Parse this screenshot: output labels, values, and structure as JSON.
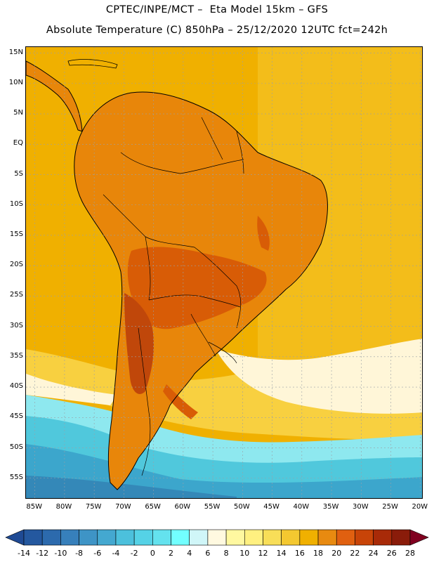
{
  "header": {
    "title_line1": "CPTEC/INPE/MCT –  Eta Model 15km – GFS",
    "title_line2": "Absolute Temperature (C) 850hPa – 25/12/2020 12UTC fct=242h"
  },
  "map": {
    "lat_labels": [
      "15N",
      "10N",
      "5N",
      "EQ",
      "5S",
      "10S",
      "15S",
      "20S",
      "25S",
      "30S",
      "35S",
      "40S",
      "45S",
      "50S",
      "55S"
    ],
    "lat_values": [
      15,
      10,
      5,
      0,
      -5,
      -10,
      -15,
      -20,
      -25,
      -30,
      -35,
      -40,
      -45,
      -50,
      -55
    ],
    "lon_labels": [
      "85W",
      "80W",
      "75W",
      "70W",
      "65W",
      "60W",
      "55W",
      "50W",
      "45W",
      "40W",
      "35W",
      "30W",
      "25W",
      "20W"
    ],
    "lon_values": [
      -85,
      -80,
      -75,
      -70,
      -65,
      -60,
      -55,
      -50,
      -45,
      -40,
      -35,
      -30,
      -25,
      -20
    ],
    "colors": {
      "ocean_warm": "#f0b000",
      "ocean_mid": "#f8d040",
      "land_warm": "#e8860a",
      "land_hot": "#d85c06",
      "land_hottest": "#c0470a",
      "cool_band": "#fff6d8",
      "cold1": "#8ee8ef",
      "cold2": "#50c8dc",
      "cold3": "#3ca6cc",
      "cold4": "#3488b8"
    }
  },
  "colorbar": {
    "labels": [
      "-14",
      "-12",
      "-10",
      "-8",
      "-6",
      "-4",
      "-2",
      "0",
      "2",
      "4",
      "6",
      "8",
      "10",
      "12",
      "14",
      "16",
      "18",
      "20",
      "22",
      "24",
      "26",
      "28"
    ],
    "colors": [
      "#1f4a94",
      "#24589f",
      "#2c6aad",
      "#3780bb",
      "#3e94c6",
      "#44a8d0",
      "#4cc0dc",
      "#55d2e6",
      "#64e2ee",
      "#72ffff",
      "#d0f6f8",
      "#fff9e0",
      "#fff8a0",
      "#fff080",
      "#f8de58",
      "#f4c830",
      "#f0b000",
      "#e88a10",
      "#e06010",
      "#c84408",
      "#a82a08",
      "#8a1c0a",
      "#800020"
    ]
  }
}
